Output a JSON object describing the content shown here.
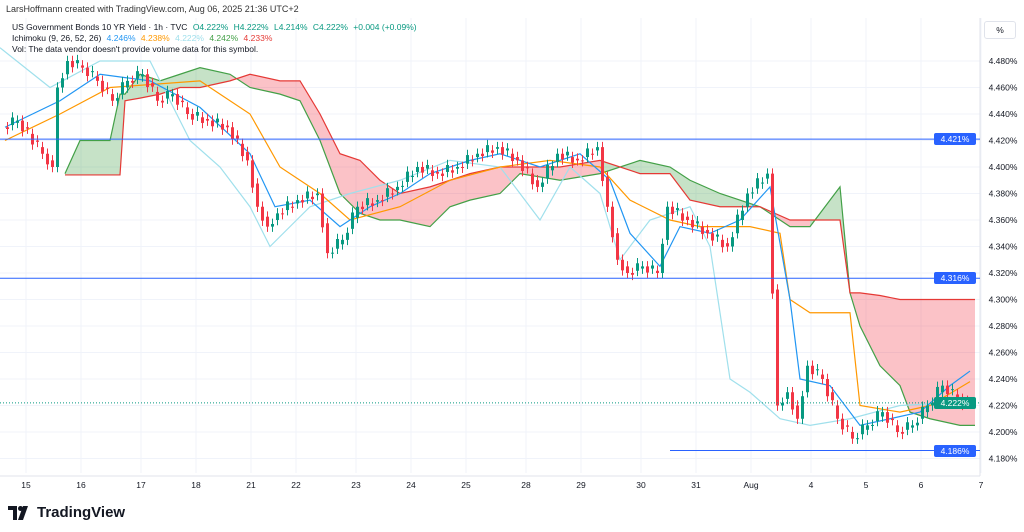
{
  "credit": "LarsHoffmann created with TradingView.com, Aug 06, 2025 21:36 UTC+2",
  "legend": {
    "symbol": "US Government Bonds 10 YR Yield · 1h · TVC",
    "open": "O4.222%",
    "high": "H4.222%",
    "low": "L4.214%",
    "close": "C4.222%",
    "change": "+0.004 (+0.09%)",
    "ichimoku": "Ichimoku (9, 26, 52, 26)",
    "ichi_values": [
      "4.246%",
      "4.238%",
      "4.222%",
      "4.242%",
      "4.233%"
    ],
    "vol": "Vol: The data vendor doesn't provide volume data for this symbol."
  },
  "price_unit": "%",
  "logo_text": "TradingView",
  "colors": {
    "up": "#089981",
    "down": "#f23645",
    "tenkan": "#2196f3",
    "kijun": "#ff9800",
    "lagging": "#a0e0ec",
    "spanA": "#43a047",
    "spanB": "#e53935",
    "hline": "#2962ff"
  },
  "chart_data": {
    "type": "candlestick",
    "title": "US Government Bonds 10 YR Yield · 1h",
    "ylabel": "%",
    "ylim": [
      4.17,
      4.52
    ],
    "yticks": [
      "4.480%",
      "4.460%",
      "4.440%",
      "4.420%",
      "4.400%",
      "4.380%",
      "4.360%",
      "4.340%",
      "4.320%",
      "4.300%",
      "4.280%",
      "4.260%",
      "4.240%",
      "4.220%",
      "4.200%",
      "4.180%"
    ],
    "ytick_values": [
      4.48,
      4.46,
      4.44,
      4.42,
      4.4,
      4.38,
      4.36,
      4.34,
      4.32,
      4.3,
      4.28,
      4.26,
      4.24,
      4.22,
      4.2,
      4.18
    ],
    "xticks": [
      {
        "bar": 4,
        "label": "15"
      },
      {
        "bar": 15,
        "label": "16"
      },
      {
        "bar": 27,
        "label": "17"
      },
      {
        "bar": 38,
        "label": "18"
      },
      {
        "bar": 49,
        "label": "21"
      },
      {
        "bar": 58,
        "label": "22"
      },
      {
        "bar": 70,
        "label": "23"
      },
      {
        "bar": 81,
        "label": "24"
      },
      {
        "bar": 92,
        "label": "25"
      },
      {
        "bar": 104,
        "label": "28"
      },
      {
        "bar": 115,
        "label": "29"
      },
      {
        "bar": 127,
        "label": "30"
      },
      {
        "bar": 138,
        "label": "31"
      },
      {
        "bar": 149,
        "label": "Aug"
      },
      {
        "bar": 161,
        "label": "4"
      },
      {
        "bar": 172,
        "label": "5"
      },
      {
        "bar": 183,
        "label": "6"
      },
      {
        "bar": 195,
        "label": "7"
      }
    ],
    "closes": [
      [
        1,
        4.43
      ],
      [
        4,
        4.435
      ],
      [
        9,
        4.41
      ],
      [
        11,
        4.4
      ],
      [
        12,
        4.46
      ],
      [
        14,
        4.48
      ],
      [
        17,
        4.475
      ],
      [
        20,
        4.465
      ],
      [
        23,
        4.45
      ],
      [
        26,
        4.465
      ],
      [
        29,
        4.47
      ],
      [
        32,
        4.45
      ],
      [
        35,
        4.455
      ],
      [
        38,
        4.44
      ],
      [
        42,
        4.435
      ],
      [
        46,
        4.43
      ],
      [
        50,
        4.405
      ],
      [
        52,
        4.37
      ],
      [
        54,
        4.355
      ],
      [
        56,
        4.365
      ],
      [
        60,
        4.375
      ],
      [
        64,
        4.38
      ],
      [
        66,
        4.335
      ],
      [
        69,
        4.345
      ],
      [
        72,
        4.37
      ],
      [
        76,
        4.375
      ],
      [
        80,
        4.385
      ],
      [
        84,
        4.4
      ],
      [
        88,
        4.395
      ],
      [
        92,
        4.4
      ],
      [
        96,
        4.41
      ],
      [
        100,
        4.415
      ],
      [
        104,
        4.405
      ],
      [
        108,
        4.385
      ],
      [
        112,
        4.41
      ],
      [
        116,
        4.405
      ],
      [
        120,
        4.415
      ],
      [
        122,
        4.37
      ],
      [
        124,
        4.33
      ],
      [
        126,
        4.32
      ],
      [
        129,
        4.325
      ],
      [
        132,
        4.32
      ],
      [
        134,
        4.37
      ],
      [
        138,
        4.36
      ],
      [
        142,
        4.35
      ],
      [
        146,
        4.34
      ],
      [
        150,
        4.38
      ],
      [
        154,
        4.395
      ],
      [
        156,
        4.22
      ],
      [
        158,
        4.23
      ],
      [
        160,
        4.21
      ],
      [
        162,
        4.25
      ],
      [
        165,
        4.24
      ],
      [
        168,
        4.21
      ],
      [
        171,
        4.195
      ],
      [
        174,
        4.205
      ],
      [
        177,
        4.215
      ],
      [
        180,
        4.2
      ],
      [
        183,
        4.205
      ],
      [
        186,
        4.22
      ],
      [
        189,
        4.235
      ],
      [
        192,
        4.225
      ],
      [
        194,
        4.222
      ]
    ],
    "tenkan": [
      [
        1,
        4.43
      ],
      [
        12,
        4.45
      ],
      [
        20,
        4.47
      ],
      [
        30,
        4.465
      ],
      [
        40,
        4.445
      ],
      [
        50,
        4.41
      ],
      [
        55,
        4.37
      ],
      [
        62,
        4.375
      ],
      [
        68,
        4.355
      ],
      [
        74,
        4.37
      ],
      [
        80,
        4.38
      ],
      [
        86,
        4.395
      ],
      [
        94,
        4.405
      ],
      [
        100,
        4.41
      ],
      [
        108,
        4.4
      ],
      [
        116,
        4.41
      ],
      [
        122,
        4.39
      ],
      [
        126,
        4.35
      ],
      [
        132,
        4.325
      ],
      [
        136,
        4.355
      ],
      [
        142,
        4.35
      ],
      [
        148,
        4.36
      ],
      [
        154,
        4.385
      ],
      [
        158,
        4.3
      ],
      [
        160,
        4.24
      ],
      [
        166,
        4.235
      ],
      [
        172,
        4.205
      ],
      [
        178,
        4.21
      ],
      [
        184,
        4.215
      ],
      [
        190,
        4.235
      ],
      [
        194,
        4.246
      ]
    ],
    "kijun": [
      [
        1,
        4.42
      ],
      [
        12,
        4.44
      ],
      [
        22,
        4.46
      ],
      [
        40,
        4.465
      ],
      [
        50,
        4.44
      ],
      [
        56,
        4.4
      ],
      [
        64,
        4.38
      ],
      [
        70,
        4.36
      ],
      [
        80,
        4.37
      ],
      [
        90,
        4.39
      ],
      [
        100,
        4.4
      ],
      [
        110,
        4.405
      ],
      [
        120,
        4.4
      ],
      [
        126,
        4.375
      ],
      [
        134,
        4.36
      ],
      [
        140,
        4.355
      ],
      [
        150,
        4.355
      ],
      [
        156,
        4.35
      ],
      [
        158,
        4.3
      ],
      [
        162,
        4.29
      ],
      [
        170,
        4.29
      ],
      [
        172,
        4.22
      ],
      [
        180,
        4.215
      ],
      [
        186,
        4.22
      ],
      [
        194,
        4.238
      ]
    ],
    "lagging": [
      [
        0,
        4.49
      ],
      [
        10,
        4.46
      ],
      [
        20,
        4.48
      ],
      [
        30,
        4.48
      ],
      [
        38,
        4.42
      ],
      [
        44,
        4.4
      ],
      [
        50,
        4.37
      ],
      [
        54,
        4.34
      ],
      [
        62,
        4.37
      ],
      [
        70,
        4.38
      ],
      [
        80,
        4.39
      ],
      [
        90,
        4.405
      ],
      [
        100,
        4.4
      ],
      [
        108,
        4.36
      ],
      [
        114,
        4.4
      ],
      [
        120,
        4.38
      ],
      [
        124,
        4.33
      ],
      [
        130,
        4.36
      ],
      [
        138,
        4.37
      ],
      [
        142,
        4.34
      ],
      [
        146,
        4.24
      ],
      [
        150,
        4.23
      ],
      [
        156,
        4.21
      ],
      [
        162,
        4.205
      ],
      [
        170,
        4.21
      ],
      [
        180,
        4.22
      ],
      [
        190,
        4.222
      ]
    ],
    "cloud": [
      [
        13,
        4.395,
        4.394
      ],
      [
        16,
        4.42,
        4.394
      ],
      [
        22,
        4.42,
        4.394
      ],
      [
        24,
        4.455,
        4.394
      ],
      [
        25,
        4.455,
        4.45
      ],
      [
        28,
        4.47,
        4.452
      ],
      [
        32,
        4.465,
        4.455
      ],
      [
        36,
        4.47,
        4.46
      ],
      [
        40,
        4.475,
        4.46
      ],
      [
        46,
        4.47,
        4.465
      ],
      [
        50,
        4.46,
        4.47
      ],
      [
        56,
        4.455,
        4.465
      ],
      [
        60,
        4.45,
        4.465
      ],
      [
        64,
        4.42,
        4.44
      ],
      [
        68,
        4.38,
        4.41
      ],
      [
        72,
        4.365,
        4.405
      ],
      [
        76,
        4.36,
        4.39
      ],
      [
        80,
        4.36,
        4.38
      ],
      [
        86,
        4.355,
        4.385
      ],
      [
        90,
        4.37,
        4.39
      ],
      [
        94,
        4.375,
        4.395
      ],
      [
        100,
        4.38,
        4.4
      ],
      [
        104,
        4.395,
        4.4
      ],
      [
        112,
        4.39,
        4.4
      ],
      [
        120,
        4.395,
        4.405
      ],
      [
        128,
        4.405,
        4.395
      ],
      [
        134,
        4.4,
        4.395
      ],
      [
        138,
        4.39,
        4.375
      ],
      [
        144,
        4.38,
        4.37
      ],
      [
        152,
        4.37,
        4.37
      ],
      [
        158,
        4.355,
        4.36
      ],
      [
        162,
        4.355,
        4.36
      ],
      [
        166,
        4.375,
        4.36
      ],
      [
        168,
        4.385,
        4.36
      ],
      [
        170,
        4.305,
        4.305
      ],
      [
        172,
        4.28,
        4.305
      ],
      [
        176,
        4.25,
        4.303
      ],
      [
        180,
        4.235,
        4.3
      ],
      [
        182,
        4.215,
        4.3
      ],
      [
        186,
        4.21,
        4.3
      ],
      [
        192,
        4.205,
        4.3
      ],
      [
        195,
        4.205,
        4.3
      ]
    ],
    "horizontal_lines": [
      {
        "value": 4.421,
        "label": "4.421%",
        "from_bar": 0
      },
      {
        "value": 4.316,
        "label": "4.316%",
        "from_bar": 0
      },
      {
        "value": 4.186,
        "label": "4.186%",
        "from_bar": 134
      }
    ],
    "last_price": {
      "value": 4.222,
      "label": "4.222%"
    }
  }
}
